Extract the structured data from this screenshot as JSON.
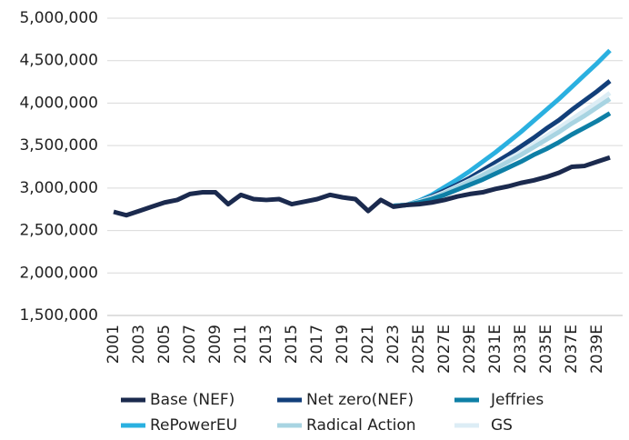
{
  "chart_data": {
    "type": "line",
    "categories": [
      "2001",
      null,
      "2003",
      null,
      "2005",
      null,
      "2007",
      null,
      "2009",
      null,
      "2011",
      null,
      "2013",
      null,
      "2015",
      null,
      "2017",
      null,
      "2019",
      null,
      "2021",
      null,
      "2023",
      null,
      "2025E",
      null,
      "2027E",
      null,
      "2029E",
      null,
      "2031E",
      null,
      "2033E",
      null,
      "2035E",
      null,
      "2037E",
      null,
      "2039E",
      null
    ],
    "ylim": [
      1500000,
      5000000
    ],
    "yticks": [
      {
        "value": 1500000,
        "label": "1,500,000"
      },
      {
        "value": 2000000,
        "label": "2,000,000"
      },
      {
        "value": 2500000,
        "label": "2,500,000"
      },
      {
        "value": 3000000,
        "label": "3,000,000"
      },
      {
        "value": 3500000,
        "label": "3,500,000"
      },
      {
        "value": 4000000,
        "label": "4,000,000"
      },
      {
        "value": 4500000,
        "label": "4,500,000"
      },
      {
        "value": 5000000,
        "label": "5,000,000"
      }
    ],
    "grid": true,
    "legend": "bottom",
    "series": [
      {
        "name": "Base (NEF)",
        "color": "#1b2a4e",
        "values": [
          2720000,
          2680000,
          2730000,
          2780000,
          2830000,
          2860000,
          2930000,
          2950000,
          2950000,
          2810000,
          2920000,
          2870000,
          2860000,
          2870000,
          2810000,
          2840000,
          2870000,
          2920000,
          2890000,
          2870000,
          2730000,
          2860000,
          2780000,
          2800000,
          2810000,
          2830000,
          2860000,
          2900000,
          2930000,
          2950000,
          2990000,
          3020000,
          3060000,
          3090000,
          3130000,
          3180000,
          3250000,
          3260000,
          3310000,
          3360000
        ]
      },
      {
        "name": "Net zero(NEF)",
        "color": "#123f7a",
        "values": [
          null,
          null,
          null,
          null,
          null,
          null,
          null,
          null,
          null,
          null,
          null,
          null,
          null,
          null,
          null,
          null,
          null,
          null,
          null,
          null,
          null,
          null,
          2790000,
          2800000,
          2840000,
          2900000,
          2970000,
          3040000,
          3120000,
          3210000,
          3300000,
          3390000,
          3490000,
          3590000,
          3700000,
          3800000,
          3920000,
          4030000,
          4140000,
          4260000
        ]
      },
      {
        "name": "Jeffries",
        "color": "#0e7fa6",
        "values": [
          null,
          null,
          null,
          null,
          null,
          null,
          null,
          null,
          null,
          null,
          null,
          null,
          null,
          null,
          null,
          null,
          null,
          null,
          null,
          null,
          null,
          null,
          2790000,
          2800000,
          2830000,
          2870000,
          2920000,
          2980000,
          3040000,
          3100000,
          3170000,
          3240000,
          3310000,
          3390000,
          3460000,
          3540000,
          3630000,
          3710000,
          3790000,
          3880000
        ]
      },
      {
        "name": "RePowerEU",
        "color": "#2ab0e0",
        "values": [
          null,
          null,
          null,
          null,
          null,
          null,
          null,
          null,
          null,
          null,
          null,
          null,
          null,
          null,
          null,
          null,
          null,
          null,
          null,
          null,
          null,
          null,
          2790000,
          2800000,
          2850000,
          2920000,
          3010000,
          3100000,
          3200000,
          3310000,
          3420000,
          3540000,
          3660000,
          3790000,
          3920000,
          4050000,
          4190000,
          4330000,
          4470000,
          4620000
        ]
      },
      {
        "name": "Radical Action",
        "color": "#a8d4e2",
        "values": [
          null,
          null,
          null,
          null,
          null,
          null,
          null,
          null,
          null,
          null,
          null,
          null,
          null,
          null,
          null,
          null,
          null,
          null,
          null,
          null,
          null,
          null,
          2790000,
          2800000,
          2830000,
          2880000,
          2940000,
          3010000,
          3080000,
          3150000,
          3230000,
          3310000,
          3390000,
          3480000,
          3570000,
          3660000,
          3760000,
          3850000,
          3950000,
          4050000
        ]
      },
      {
        "name": "GS",
        "color": "#dcedf5",
        "values": [
          null,
          null,
          null,
          null,
          null,
          null,
          null,
          null,
          null,
          null,
          null,
          null,
          null,
          null,
          null,
          null,
          null,
          null,
          null,
          null,
          null,
          null,
          2790000,
          2800000,
          2840000,
          2890000,
          2950000,
          3020000,
          3090000,
          3170000,
          3250000,
          3340000,
          3420000,
          3520000,
          3610000,
          3710000,
          3810000,
          3910000,
          4010000,
          4120000
        ]
      }
    ]
  }
}
